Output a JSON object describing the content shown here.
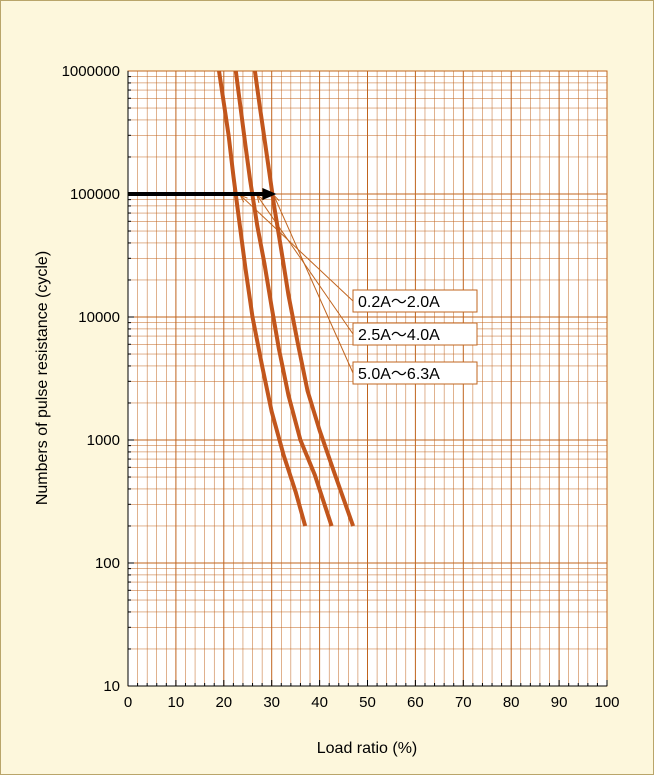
{
  "chart_data": {
    "type": "line",
    "title": "",
    "xlabel": "Load ratio (%)",
    "ylabel": "Numbers of pulse resistance (cycle)",
    "xlim": [
      0,
      100
    ],
    "ylim": [
      10,
      1000000
    ],
    "yscale": "log",
    "grid": true,
    "xticks": [
      0,
      10,
      20,
      30,
      40,
      50,
      60,
      70,
      80,
      90,
      100
    ],
    "yticks": [
      10,
      100,
      1000,
      10000,
      100000,
      1000000
    ],
    "xtick_labels": [
      "0",
      "10",
      "20",
      "30",
      "40",
      "50",
      "60",
      "70",
      "80",
      "90",
      "100"
    ],
    "ytick_labels": [
      "10",
      "100",
      "1000",
      "10000",
      "100000",
      "1000000"
    ],
    "series": [
      {
        "name": "0.2A～2.0A",
        "x": [
          19.0,
          20.0,
          21.0,
          22.0,
          23.0,
          24.5,
          26.0,
          28.0,
          30.0,
          32.5,
          35.0,
          37.0
        ],
        "y": [
          1000000,
          550000,
          300000,
          140000,
          70000,
          25000,
          10000,
          4000,
          1700,
          750,
          380,
          200
        ]
      },
      {
        "name": "2.5A～4.0A",
        "x": [
          22.5,
          23.5,
          24.5,
          25.5,
          27.0,
          28.5,
          30.0,
          31.5,
          33.5,
          36.0,
          39.0,
          42.5
        ],
        "y": [
          1000000,
          500000,
          250000,
          130000,
          55000,
          27000,
          12000,
          5500,
          2300,
          1000,
          520,
          200
        ]
      },
      {
        "name": "5.0A～6.3A",
        "x": [
          26.5,
          27.5,
          28.5,
          29.5,
          30.5,
          32.0,
          33.5,
          35.5,
          37.5,
          40.0,
          43.0,
          47.0
        ],
        "y": [
          1000000,
          520000,
          280000,
          150000,
          80000,
          35000,
          15000,
          6000,
          2500,
          1200,
          550,
          200
        ]
      }
    ],
    "annotations": [
      {
        "type": "arrow",
        "from": [
          0,
          100000
        ],
        "to": [
          31,
          100000
        ]
      }
    ],
    "colors": {
      "grid": "#c0641e",
      "curve": "#c2561c",
      "leader": "#c0641e",
      "arrow": "#000000",
      "background": "#fdf7dc",
      "plot_background": "#ffffff"
    }
  }
}
